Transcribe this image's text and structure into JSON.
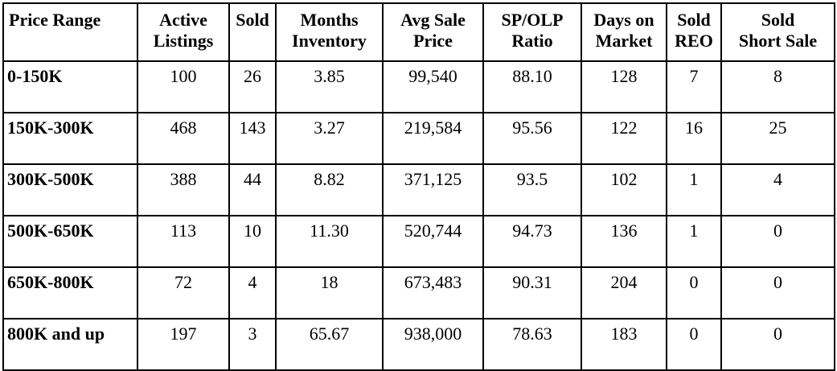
{
  "table": {
    "headers": [
      [
        "Price Range"
      ],
      [
        "Active",
        "Listings"
      ],
      [
        "Sold"
      ],
      [
        "Months",
        "Inventory"
      ],
      [
        "Avg Sale",
        "Price"
      ],
      [
        "SP/OLP",
        "Ratio"
      ],
      [
        "Days on",
        "Market"
      ],
      [
        "Sold",
        "REO"
      ],
      [
        "Sold",
        "Short Sale"
      ]
    ],
    "rows": [
      [
        "0-150K",
        "100",
        "26",
        "3.85",
        "99,540",
        "88.10",
        "128",
        "7",
        "8"
      ],
      [
        "150K-300K",
        "468",
        "143",
        "3.27",
        "219,584",
        "95.56",
        "122",
        "16",
        "25"
      ],
      [
        "300K-500K",
        "388",
        "44",
        "8.82",
        "371,125",
        "93.5",
        "102",
        "1",
        "4"
      ],
      [
        "500K-650K",
        "113",
        "10",
        "11.30",
        "520,744",
        "94.73",
        "136",
        "1",
        "0"
      ],
      [
        "650K-800K",
        "72",
        "4",
        "18",
        "673,483",
        "90.31",
        "204",
        "0",
        "0"
      ],
      [
        "800K and up",
        "197",
        "3",
        "65.67",
        "938,000",
        "78.63",
        "183",
        "0",
        "0"
      ]
    ]
  }
}
